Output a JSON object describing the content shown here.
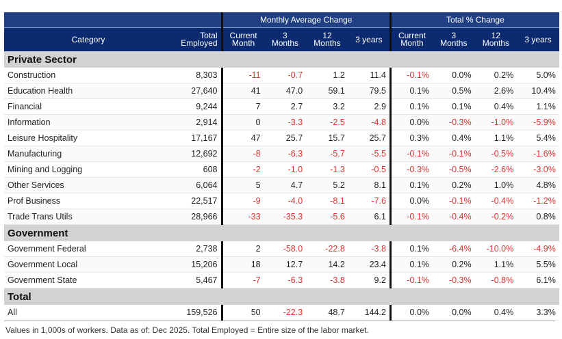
{
  "header": {
    "groups": {
      "monthly": "Monthly Average Change",
      "total_pct": "Total % Change"
    },
    "columns": {
      "category": "Category",
      "total_employed": [
        "Total",
        "Employed"
      ],
      "m_current": [
        "Current",
        "Month"
      ],
      "m_3": [
        "3",
        "Months"
      ],
      "m_12": [
        "12",
        "Months"
      ],
      "m_3y": "3 years",
      "p_current": [
        "Current",
        "Month"
      ],
      "p_3": [
        "3",
        "Months"
      ],
      "p_12": [
        "12",
        "Months"
      ],
      "p_3y": "3 years"
    }
  },
  "sections": [
    {
      "title": "Private Sector",
      "rows": [
        [
          "Construction",
          "8,303",
          "-11",
          "-0.7",
          "1.2",
          "11.4",
          "-0.1%",
          "0.0%",
          "0.2%",
          "5.0%"
        ],
        [
          "Education Health",
          "27,640",
          "41",
          "47.0",
          "59.1",
          "79.5",
          "0.1%",
          "0.5%",
          "2.6%",
          "10.4%"
        ],
        [
          "Financial",
          "9,244",
          "7",
          "2.7",
          "3.2",
          "2.9",
          "0.1%",
          "0.1%",
          "0.4%",
          "1.1%"
        ],
        [
          "Information",
          "2,914",
          "0",
          "-3.3",
          "-2.5",
          "-4.8",
          "0.0%",
          "-0.3%",
          "-1.0%",
          "-5.9%"
        ],
        [
          "Leisure Hospitality",
          "17,167",
          "47",
          "25.7",
          "15.7",
          "25.7",
          "0.3%",
          "0.4%",
          "1.1%",
          "5.4%"
        ],
        [
          "Manufacturing",
          "12,692",
          "-8",
          "-6.3",
          "-5.7",
          "-5.5",
          "-0.1%",
          "-0.1%",
          "-0.5%",
          "-1.6%"
        ],
        [
          "Mining and Logging",
          "608",
          "-2",
          "-1.0",
          "-1.3",
          "-0.5",
          "-0.3%",
          "-0.5%",
          "-2.6%",
          "-3.0%"
        ],
        [
          "Other Services",
          "6,064",
          "5",
          "4.7",
          "5.2",
          "8.1",
          "0.1%",
          "0.2%",
          "1.0%",
          "4.8%"
        ],
        [
          "Prof Business",
          "22,517",
          "-9",
          "-4.0",
          "-8.1",
          "-7.6",
          "0.0%",
          "-0.1%",
          "-0.4%",
          "-1.2%"
        ],
        [
          "Trade Trans Utils",
          "28,966",
          "-33",
          "-35.3",
          "-5.6",
          "6.1",
          "-0.1%",
          "-0.4%",
          "-0.2%",
          "0.8%"
        ]
      ]
    },
    {
      "title": "Government",
      "rows": [
        [
          "Government Federal",
          "2,738",
          "2",
          "-58.0",
          "-22.8",
          "-3.8",
          "0.1%",
          "-6.4%",
          "-10.0%",
          "-4.9%"
        ],
        [
          "Government Local",
          "15,206",
          "18",
          "12.7",
          "14.2",
          "23.4",
          "0.1%",
          "0.2%",
          "1.1%",
          "5.5%"
        ],
        [
          "Government State",
          "5,467",
          "-7",
          "-6.3",
          "-3.8",
          "9.2",
          "-0.1%",
          "-0.3%",
          "-0.8%",
          "6.1%"
        ]
      ]
    },
    {
      "title": "Total",
      "rows": [
        [
          "All",
          "159,526",
          "50",
          "-22.3",
          "48.7",
          "144.2",
          "0.0%",
          "0.0%",
          "0.4%",
          "3.3%"
        ]
      ]
    }
  ],
  "footnote": "Values in 1,000s of workers. Data as of: Dec 2025. Total Employed = Entire size of the labor market.",
  "colors": {
    "header_dark": "#0b2a6f",
    "header_group": "#1f3f82",
    "section_bg": "#d2d2d2",
    "negative": "#e03030"
  }
}
